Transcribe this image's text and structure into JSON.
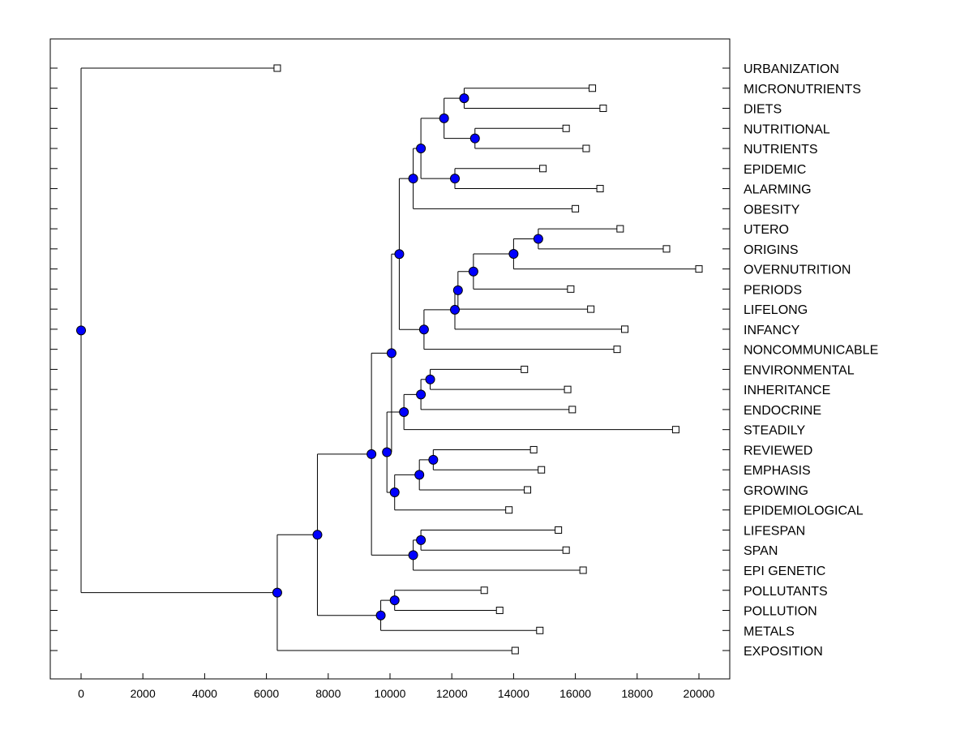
{
  "chart_data": {
    "type": "dendrogram",
    "xlim": [
      -1000,
      21000
    ],
    "x_ticks": [
      0,
      2000,
      4000,
      6000,
      8000,
      10000,
      12000,
      14000,
      16000,
      18000,
      20000
    ],
    "leaves": [
      {
        "label": "URBANIZATION",
        "value": 6350
      },
      {
        "label": "MICRONUTRIENTS",
        "value": 16550
      },
      {
        "label": "DIETS",
        "value": 16900
      },
      {
        "label": "NUTRITIONAL",
        "value": 15700
      },
      {
        "label": "NUTRIENTS",
        "value": 16350
      },
      {
        "label": "EPIDEMIC",
        "value": 14950
      },
      {
        "label": "ALARMING",
        "value": 16800
      },
      {
        "label": "OBESITY",
        "value": 16000
      },
      {
        "label": "UTERO",
        "value": 17450
      },
      {
        "label": "ORIGINS",
        "value": 18950
      },
      {
        "label": "OVERNUTRITION",
        "value": 20000
      },
      {
        "label": "PERIODS",
        "value": 15850
      },
      {
        "label": "LIFELONG",
        "value": 16500
      },
      {
        "label": "INFANCY",
        "value": 17600
      },
      {
        "label": "NONCOMMUNICABLE",
        "value": 17350
      },
      {
        "label": "ENVIRONMENTAL",
        "value": 14350
      },
      {
        "label": "INHERITANCE",
        "value": 15750
      },
      {
        "label": "ENDOCRINE",
        "value": 15900
      },
      {
        "label": "STEADILY",
        "value": 19250
      },
      {
        "label": "REVIEWED",
        "value": 14650
      },
      {
        "label": "EMPHASIS",
        "value": 14900
      },
      {
        "label": "GROWING",
        "value": 14450
      },
      {
        "label": "EPIDEMIOLOGICAL",
        "value": 13850
      },
      {
        "label": "LIFESPAN",
        "value": 15450
      },
      {
        "label": "SPAN",
        "value": 15700
      },
      {
        "label": "EPI GENETIC",
        "value": 16250
      },
      {
        "label": "POLLUTANTS",
        "value": 13050
      },
      {
        "label": "POLLUTION",
        "value": 13550
      },
      {
        "label": "METALS",
        "value": 14850
      },
      {
        "label": "EXPOSITION",
        "value": 14050
      }
    ],
    "merges": [
      {
        "id": "n1",
        "value": 12400,
        "children": [
          "L1",
          "L2"
        ]
      },
      {
        "id": "n2",
        "value": 12750,
        "children": [
          "L3",
          "L4"
        ]
      },
      {
        "id": "n3",
        "value": 11750,
        "children": [
          "n1",
          "n2"
        ]
      },
      {
        "id": "n4",
        "value": 12100,
        "children": [
          "L5",
          "L6"
        ]
      },
      {
        "id": "n5",
        "value": 11000,
        "children": [
          "n3",
          "n4"
        ]
      },
      {
        "id": "n6",
        "value": 10750,
        "children": [
          "n5",
          "L7"
        ]
      },
      {
        "id": "n7",
        "value": 14800,
        "children": [
          "L8",
          "L9"
        ]
      },
      {
        "id": "n8",
        "value": 14000,
        "children": [
          "n7",
          "L10"
        ]
      },
      {
        "id": "n9",
        "value": 12700,
        "children": [
          "n8",
          "L11"
        ]
      },
      {
        "id": "n10",
        "value": 12200,
        "children": [
          "n9",
          "L12"
        ]
      },
      {
        "id": "n11",
        "value": 12100,
        "children": [
          "n10",
          "L13"
        ]
      },
      {
        "id": "n12",
        "value": 11100,
        "children": [
          "n11",
          "L14"
        ]
      },
      {
        "id": "n13",
        "value": 10300,
        "children": [
          "n6",
          "n12"
        ]
      },
      {
        "id": "n14",
        "value": 11300,
        "children": [
          "L15",
          "L16"
        ]
      },
      {
        "id": "n15",
        "value": 11000,
        "children": [
          "n14",
          "L17"
        ]
      },
      {
        "id": "n16",
        "value": 10450,
        "children": [
          "n15",
          "L18"
        ]
      },
      {
        "id": "n17",
        "value": 11400,
        "children": [
          "L19",
          "L20"
        ]
      },
      {
        "id": "n18",
        "value": 10950,
        "children": [
          "n17",
          "L21"
        ]
      },
      {
        "id": "n19",
        "value": 10150,
        "children": [
          "n18",
          "L22"
        ]
      },
      {
        "id": "n20",
        "value": 9900,
        "children": [
          "n16",
          "n19"
        ]
      },
      {
        "id": "n21",
        "value": 10050,
        "children": [
          "n13",
          "n20"
        ]
      },
      {
        "id": "n22",
        "value": 11000,
        "children": [
          "L23",
          "L24"
        ]
      },
      {
        "id": "n23",
        "value": 10750,
        "children": [
          "n22",
          "L25"
        ]
      },
      {
        "id": "n24",
        "value": 9400,
        "children": [
          "n21",
          "n23"
        ]
      },
      {
        "id": "n25",
        "value": 10150,
        "children": [
          "L26",
          "L27"
        ]
      },
      {
        "id": "n26",
        "value": 9700,
        "children": [
          "n25",
          "L28"
        ]
      },
      {
        "id": "n27",
        "value": 7650,
        "children": [
          "n24",
          "n26"
        ]
      },
      {
        "id": "n28",
        "value": 6350,
        "children": [
          "n27",
          "L29"
        ]
      },
      {
        "id": "n29",
        "value": 0,
        "children": [
          "L0",
          "n28"
        ]
      }
    ],
    "colors": {
      "node": "#0000ff",
      "line": "#000000",
      "leaf_marker": "#ffffff"
    }
  }
}
